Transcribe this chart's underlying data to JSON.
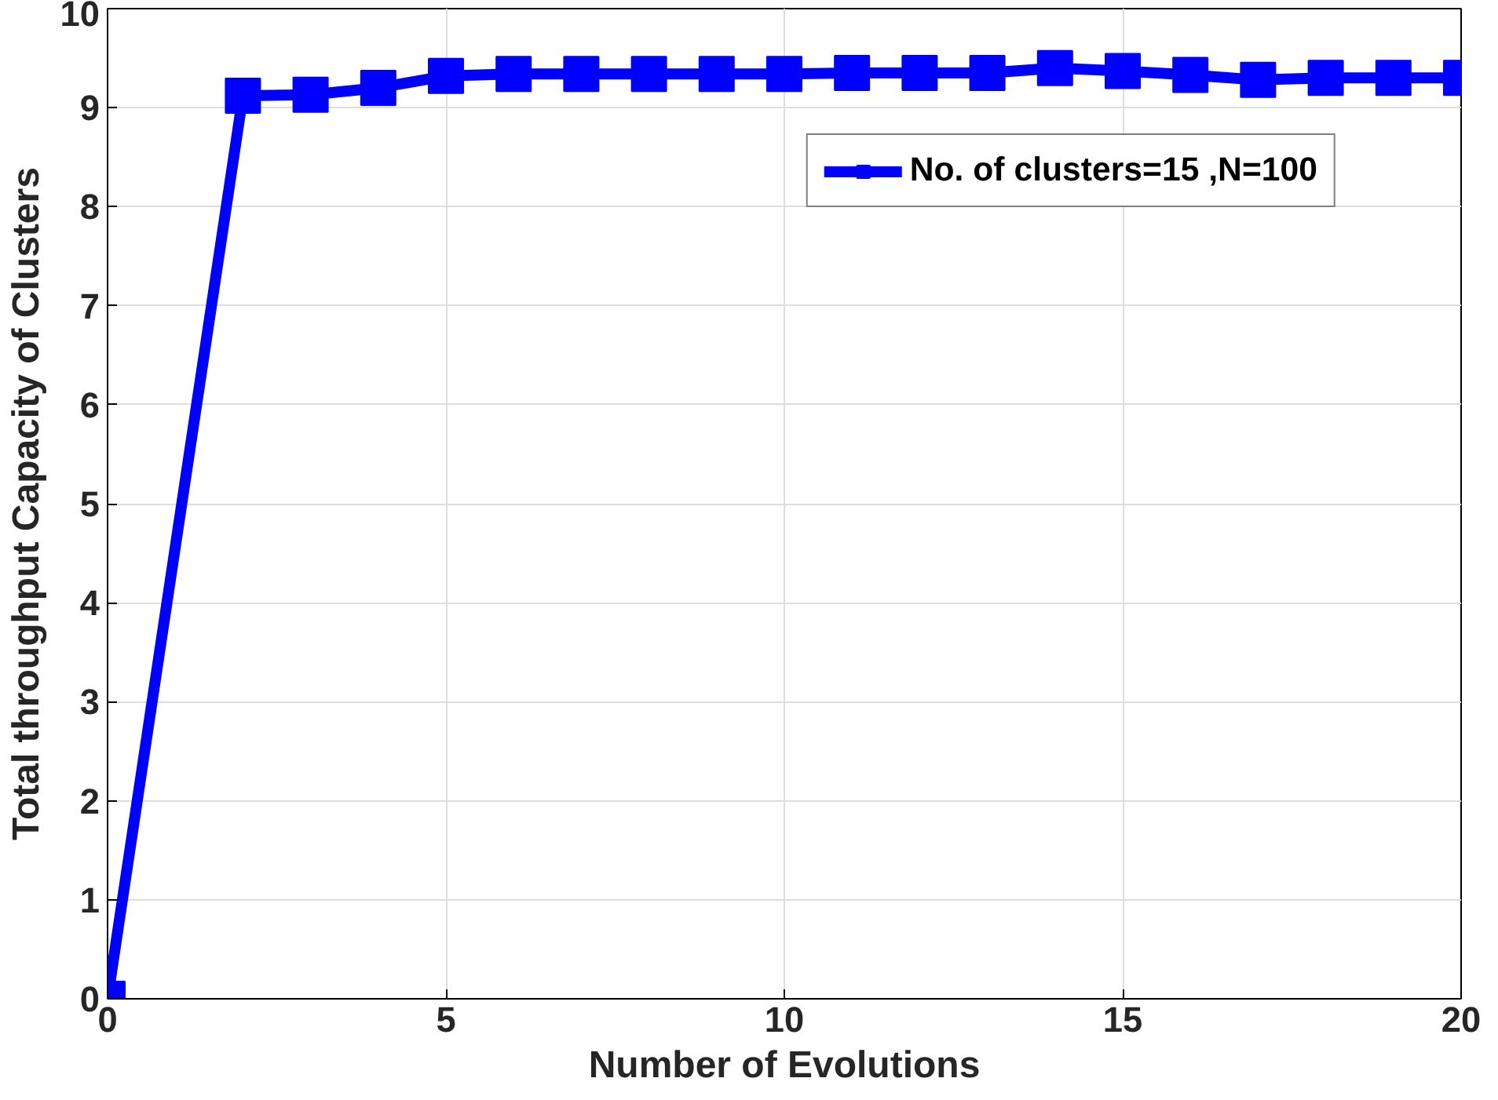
{
  "chart_data": {
    "type": "line",
    "xlabel": "Number of Evolutions",
    "ylabel": "Total throughput Capacity of Clusters",
    "x": [
      0,
      2,
      3,
      4,
      5,
      6,
      7,
      8,
      9,
      10,
      11,
      12,
      13,
      14,
      15,
      16,
      17,
      18,
      19,
      20
    ],
    "series": [
      {
        "name": "No. of clusters=15 ,N=100",
        "color": "#0000ff",
        "values": [
          0,
          9.12,
          9.13,
          9.2,
          9.32,
          9.34,
          9.34,
          9.34,
          9.34,
          9.34,
          9.35,
          9.35,
          9.35,
          9.4,
          9.37,
          9.33,
          9.28,
          9.3,
          9.3,
          9.3
        ]
      }
    ],
    "xlim": [
      0,
      20
    ],
    "ylim": [
      0,
      10
    ],
    "xticks": [
      0,
      5,
      10,
      15,
      20
    ],
    "yticks": [
      0,
      1,
      2,
      3,
      4,
      5,
      6,
      7,
      8,
      9,
      10
    ],
    "grid": true,
    "legend": "top right",
    "marker": "square",
    "line_style": "solid"
  }
}
